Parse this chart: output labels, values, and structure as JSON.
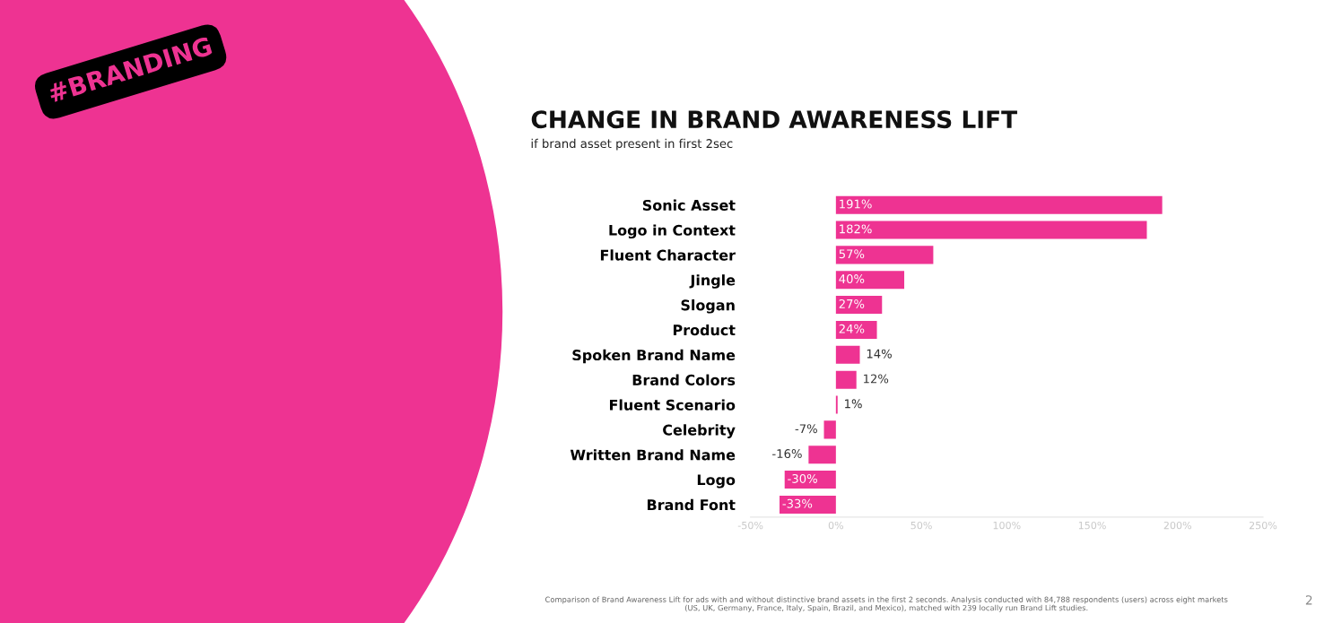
{
  "chart_data": {
    "type": "bar",
    "orientation": "horizontal",
    "title": "CHANGE IN BRAND AWARENESS LIFT",
    "subtitle": "if brand asset present in first 2sec",
    "categories": [
      "Sonic Asset",
      "Logo in Context",
      "Fluent Character",
      "Jingle",
      "Slogan",
      "Product",
      "Spoken Brand Name",
      "Brand Colors",
      "Fluent Scenario",
      "Celebrity",
      "Written Brand Name",
      "Logo",
      "Brand Font"
    ],
    "values": [
      191,
      182,
      57,
      40,
      27,
      24,
      14,
      12,
      1,
      -7,
      -16,
      -30,
      -33
    ],
    "value_labels": [
      "191%",
      "182%",
      "57%",
      "40%",
      "27%",
      "24%",
      "14%",
      "12%",
      "1%",
      "-7%",
      "-16%",
      "-30%",
      "-33%"
    ],
    "color": "#ee3392",
    "xlim": [
      -50,
      250
    ],
    "xticks": [
      {
        "value": -50,
        "label": "-50%"
      },
      {
        "value": 0,
        "label": "0%"
      },
      {
        "value": 50,
        "label": "50%"
      },
      {
        "value": 100,
        "label": "100%"
      },
      {
        "value": 150,
        "label": "150%"
      },
      {
        "value": 200,
        "label": "200%"
      },
      {
        "value": 250,
        "label": "250%"
      }
    ],
    "grid": false,
    "legend": false,
    "annotations": [
      "#BRANDING",
      "Comparison of Brand Awareness Lift for ads with and without distinctive brand assets in the first 2 seconds. Analysis conducted with 84,788 respondents (users) across eight markets (US, UK, Germany, France, Italy, Spain, Brazil, and Mexico), matched with 239 locally run Brand Lift studies.",
      "2"
    ]
  }
}
